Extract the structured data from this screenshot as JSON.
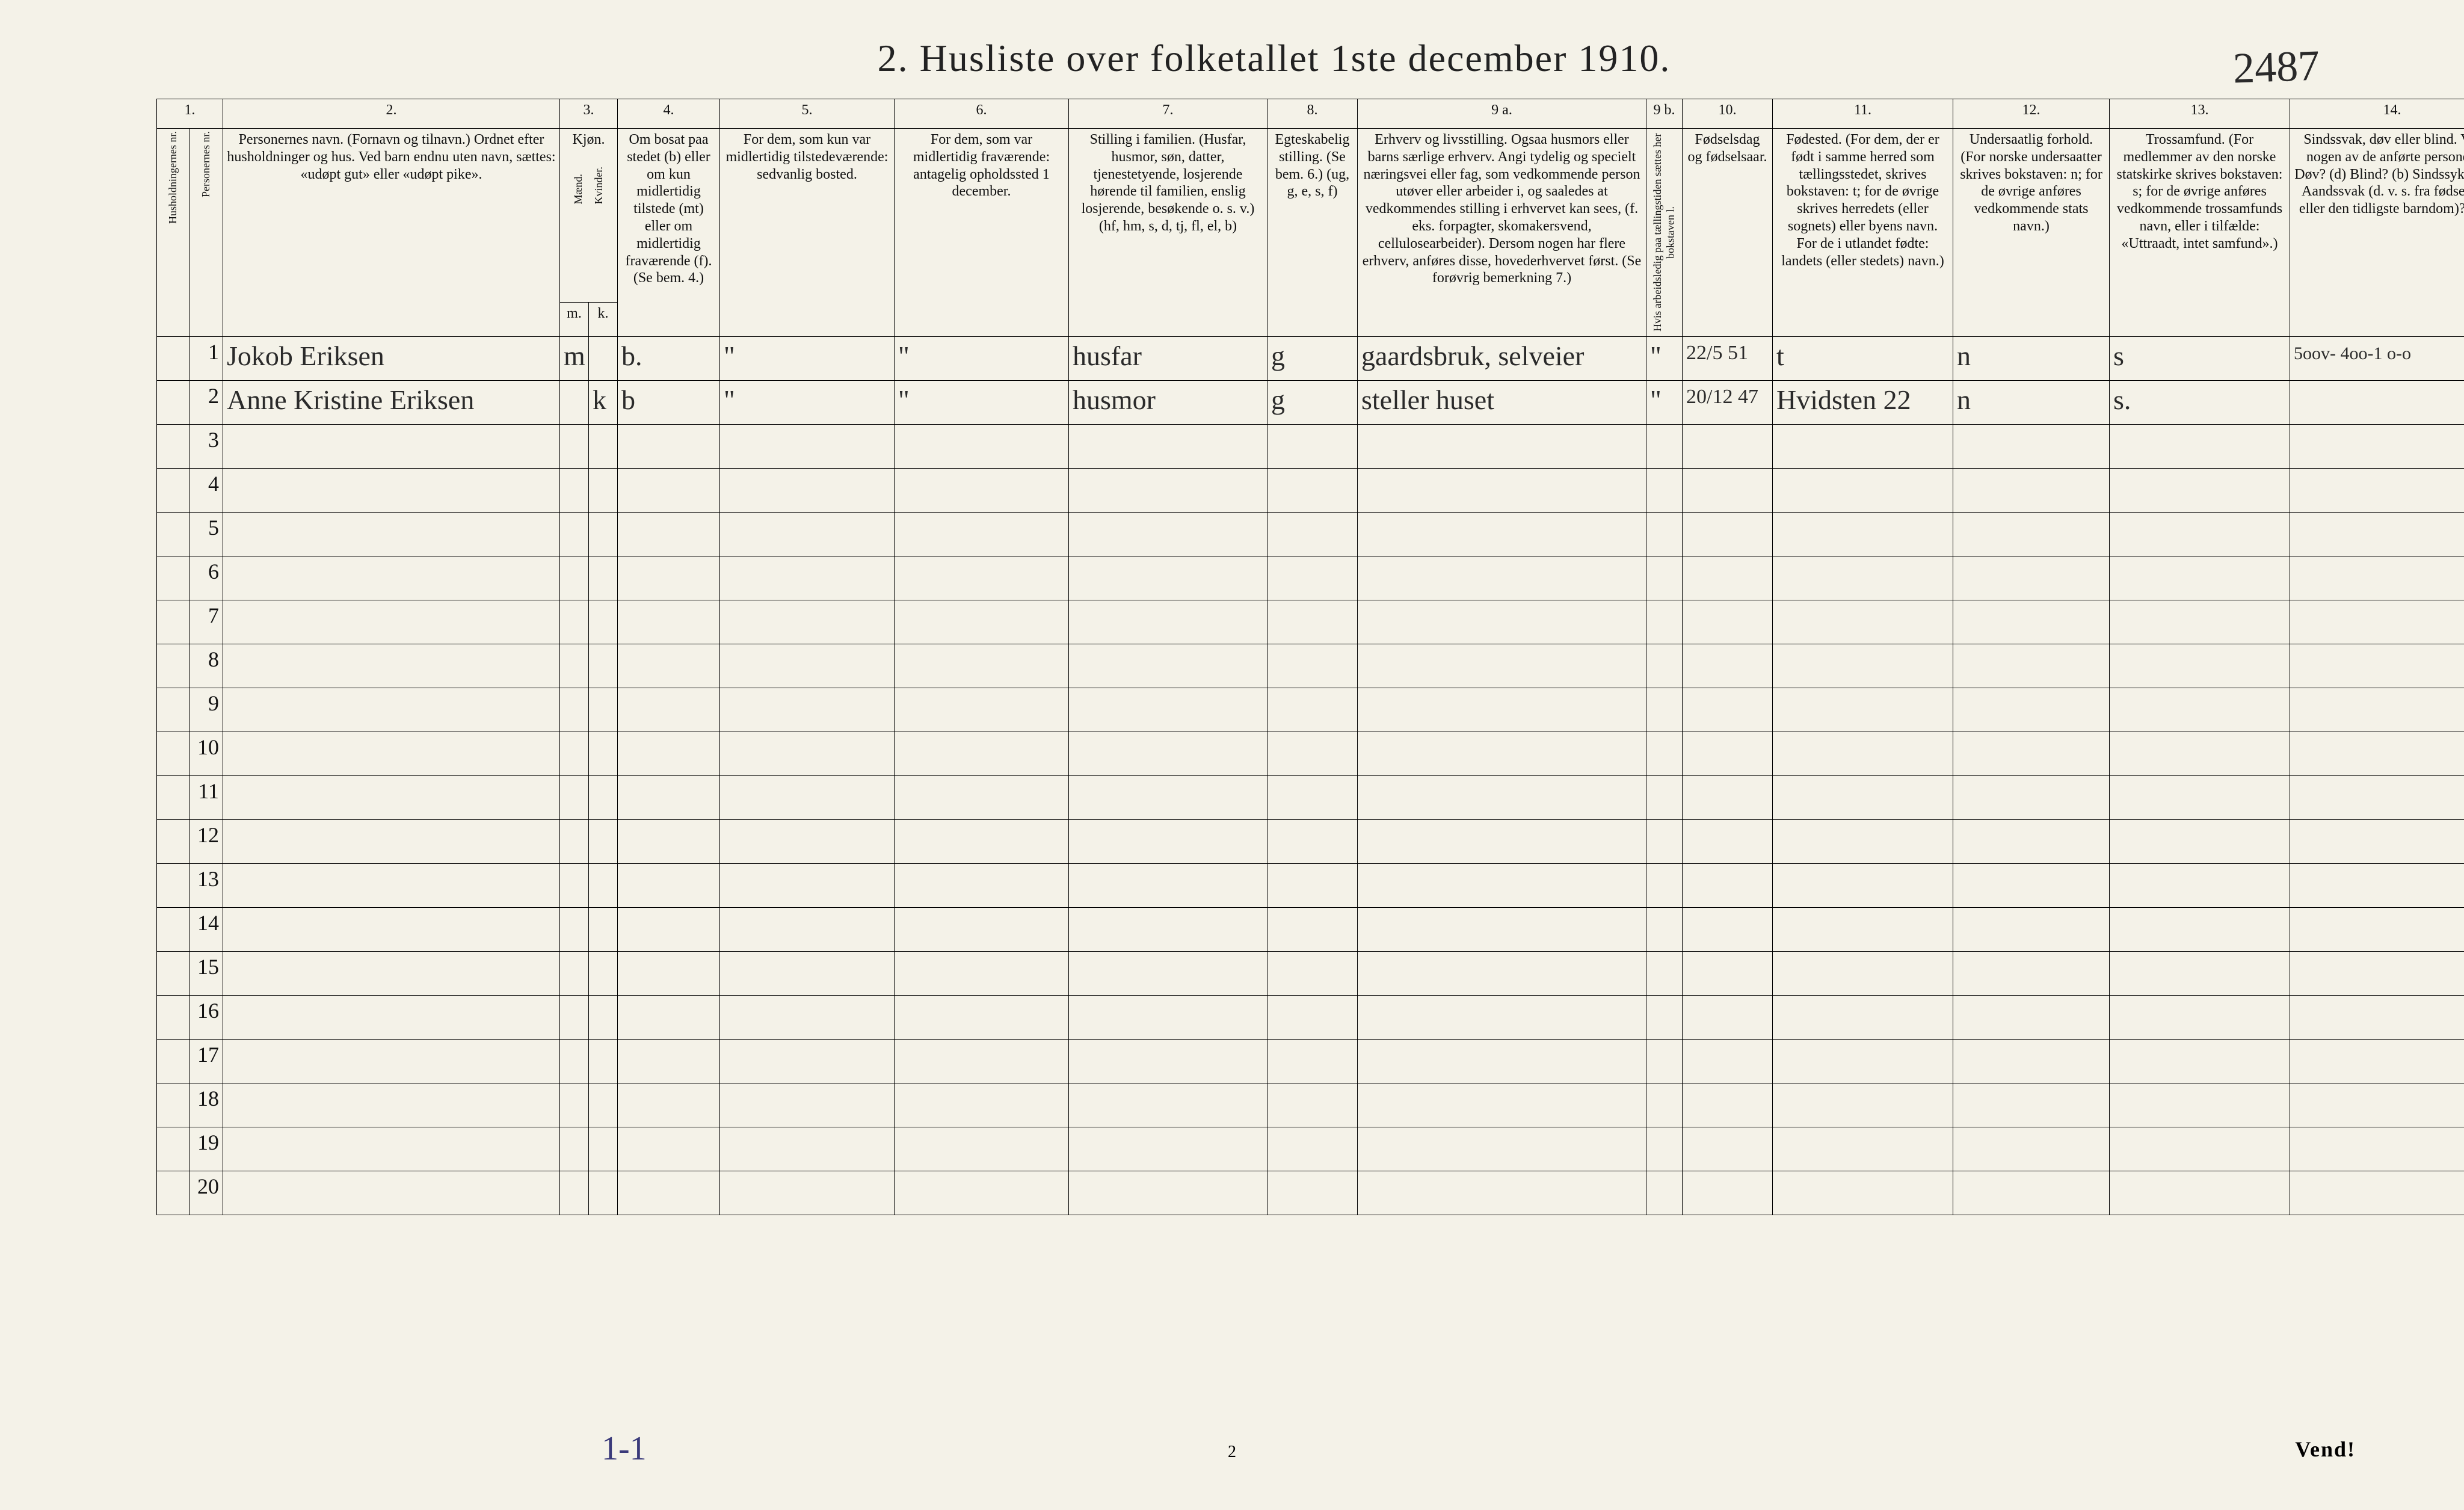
{
  "title": "2.  Husliste over folketallet 1ste december 1910.",
  "topRightHand": "2487",
  "pageNumber": "2",
  "vend": "Vend!",
  "bottomHand": "1-1",
  "colNumbers": [
    "1.",
    "",
    "2.",
    "3.",
    "4.",
    "5.",
    "6.",
    "7.",
    "8.",
    "9 a.",
    "9 b.",
    "10.",
    "11.",
    "12.",
    "13.",
    "14."
  ],
  "headers": {
    "husholdnr": "Husholdningernes nr.",
    "personnr": "Personernes nr.",
    "navn": "Personernes navn.\n(Fornavn og tilnavn.)\nOrdnet efter husholdninger og hus.\nVed barn endnu uten navn, sættes: «udøpt gut» eller «udøpt pike».",
    "kjon": "Kjøn.",
    "maend": "Mænd.",
    "kvinder": "Kvinder.",
    "kjon_mk": [
      "m.",
      "k."
    ],
    "bosat": "Om bosat paa stedet (b) eller om kun midlertidig tilstede (mt) eller om midlertidig fraværende (f). (Se bem. 4.)",
    "tilstede": "For dem, som kun var midlertidig tilstedeværende:\nsedvanlig bosted.",
    "fravaerende": "For dem, som var midlertidig fraværende:\nantagelig opholdssted 1 december.",
    "stilling_fam": "Stilling i familien.\n(Husfar, husmor, søn, datter, tjenestetyende, losjerende hørende til familien, enslig losjerende, besøkende o. s. v.)\n(hf, hm, s, d, tj, fl, el, b)",
    "egteskab": "Egteskabelig stilling.\n(Se bem. 6.)\n(ug, g, e, s, f)",
    "erhverv": "Erhverv og livsstilling.\nOgsaa husmors eller barns særlige erhverv. Angi tydelig og specielt næringsvei eller fag, som vedkommende person utøver eller arbeider i, og saaledes at vedkommendes stilling i erhvervet kan sees, (f. eks. forpagter, skomakersvend, cellulosearbeider). Dersom nogen har flere erhverv, anføres disse, hovederhvervet først.\n(Se forøvrig bemerkning 7.)",
    "arbeidsledig": "Hvis arbeidsledig paa tællingstiden sættes her bokstaven l.",
    "fodselsdag": "Fødselsdag og fødselsaar.",
    "fodested": "Fødested.\n(For dem, der er født i samme herred som tællingsstedet, skrives bokstaven: t; for de øvrige skrives herredets (eller sognets) eller byens navn. For de i utlandet fødte: landets (eller stedets) navn.)",
    "undersaatlig": "Undersaatlig forhold.\n(For norske undersaatter skrives bokstaven: n; for de øvrige anføres vedkommende stats navn.)",
    "trossamfund": "Trossamfund.\n(For medlemmer av den norske statskirke skrives bokstaven: s; for de øvrige anføres vedkommende trossamfunds navn, eller i tilfælde: «Uttraadt, intet samfund».)",
    "sindssvak": "Sindssvak, døv eller blind.\nVar nogen av de anførte personer:\nDøv? (d)\nBlind? (b)\nSindssyk? (s)\nAandssvak (d. v. s. fra fødselen eller den tidligste barndom)? (a)"
  },
  "rows": [
    {
      "hnr": "",
      "pnr": "1",
      "navn": "Jokob Eriksen",
      "m": "m",
      "k": "",
      "bosat": "b.",
      "tilstede": "\"",
      "fravaerende": "\"",
      "stilling": "husfar",
      "egteskab": "g",
      "erhverv": "gaardsbruk, selveier",
      "arbledig": "\"",
      "fodselsdag": "22/5 51",
      "fodested": "t",
      "undersaat": "n",
      "tros": "s",
      "sind": "5oov- 4oo-1  o-o"
    },
    {
      "hnr": "",
      "pnr": "2",
      "navn": "Anne Kristine Eriksen",
      "m": "",
      "k": "k",
      "bosat": "b",
      "tilstede": "\"",
      "fravaerende": "\"",
      "stilling": "husmor",
      "egteskab": "g",
      "erhverv": "steller huset",
      "arbledig": "\"",
      "fodselsdag": "20/12 47",
      "fodested": "Hvidsten 22",
      "undersaat": "n",
      "tros": "s.",
      "sind": ""
    }
  ],
  "emptyRowCount": 18,
  "colWidths": {
    "c1": 55,
    "c1b": 55,
    "c2": 560,
    "c3m": 48,
    "c3k": 48,
    "c4": 170,
    "c5": 290,
    "c6": 290,
    "c7": 330,
    "c8": 150,
    "c9a": 480,
    "c9b": 60,
    "c10": 150,
    "c11": 300,
    "c12": 260,
    "c13": 300,
    "c14": 340
  },
  "colors": {
    "paper": "#f4f2e8",
    "ink": "#111111",
    "handInk": "#2a2a2a",
    "blueHand": "#3a3a7a",
    "border": "#000000"
  },
  "fonts": {
    "titleSize": 64,
    "headerSize": 20,
    "handSize": 46
  }
}
